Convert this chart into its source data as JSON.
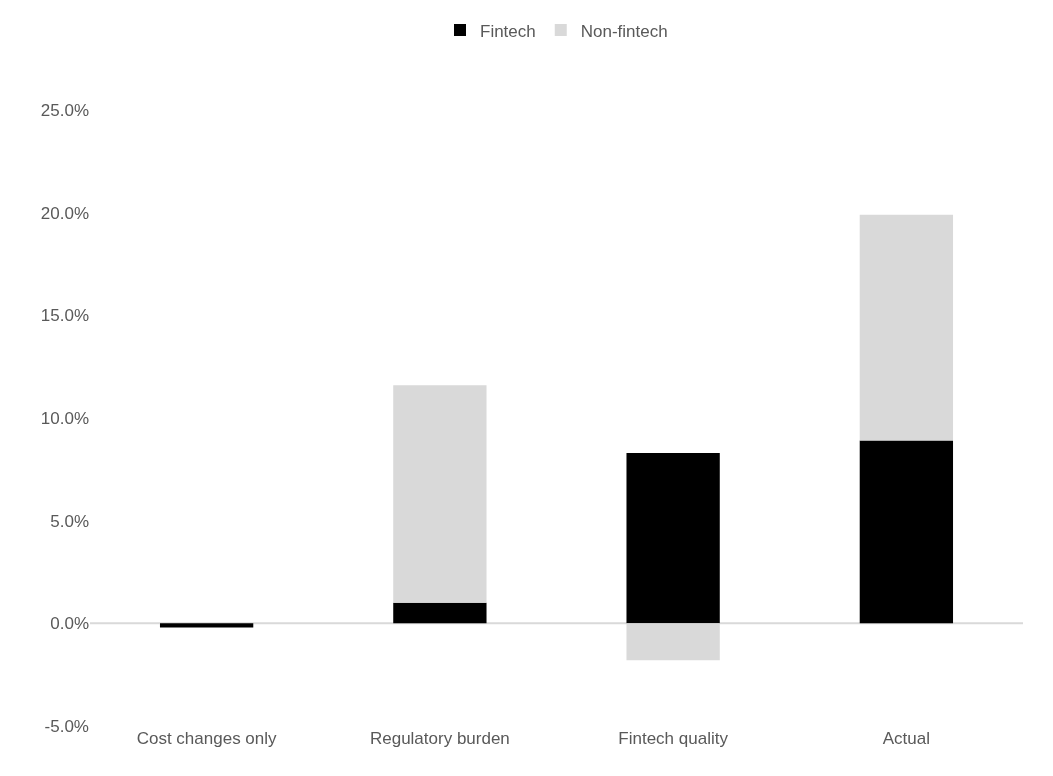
{
  "chart_data": {
    "type": "bar",
    "stacked": true,
    "categories": [
      "Cost changes only",
      "Regulatory burden",
      "Fintech quality",
      "Actual"
    ],
    "series": [
      {
        "name": "Fintech",
        "color": "#000000",
        "values": [
          -0.2,
          1.0,
          8.3,
          8.9
        ]
      },
      {
        "name": "Non-fintech",
        "color": "#d9d9d9",
        "values": [
          0,
          10.6,
          -1.8,
          11.0
        ]
      }
    ],
    "ylim": [
      -5,
      25
    ],
    "yticks": [
      {
        "value": -5,
        "label": "-5.0%"
      },
      {
        "value": 0,
        "label": "0.0%"
      },
      {
        "value": 5,
        "label": "5.0%"
      },
      {
        "value": 10,
        "label": "10.0%"
      },
      {
        "value": 15,
        "label": "15.0%"
      },
      {
        "value": 20,
        "label": "20.0%"
      },
      {
        "value": 25,
        "label": "25.0%"
      }
    ],
    "ref_lines": [
      {
        "axis": "y",
        "value": 0,
        "color": "#d9d9d9"
      }
    ],
    "grid": false,
    "legend": "top"
  }
}
